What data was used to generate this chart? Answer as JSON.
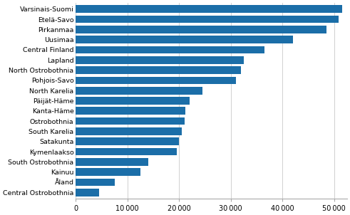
{
  "regions": [
    "Varsinais-Suomi",
    "Etelä-Savo",
    "Pirkanmaa",
    "Uusimaa",
    "Central Finland",
    "Lapland",
    "North Ostrobothnia",
    "Pohjois-Savo",
    "North Karelia",
    "Päijät-Häme",
    "Kanta-Häme",
    "Ostrobothnia",
    "South Karelia",
    "Satakunta",
    "Kymenlaakso",
    "South Ostrobothnia",
    "Kainuu",
    "Åland",
    "Central Ostrobothnia"
  ],
  "values": [
    51500,
    50800,
    48500,
    42000,
    36500,
    32500,
    32000,
    31000,
    24500,
    22000,
    21200,
    21000,
    20500,
    20000,
    19500,
    14000,
    12500,
    7500,
    4500
  ],
  "bar_color": "#1b6ea8",
  "background_color": "#ffffff",
  "xlim": [
    0,
    52500
  ],
  "xticks": [
    0,
    10000,
    20000,
    30000,
    40000,
    50000
  ],
  "xtick_labels": [
    "0",
    "10 000",
    "20 000",
    "30 000",
    "40 000",
    "50 000"
  ],
  "grid_color": "#d0d0d0",
  "font_size": 6.8,
  "tick_font_size": 7.0,
  "bar_height": 0.75
}
